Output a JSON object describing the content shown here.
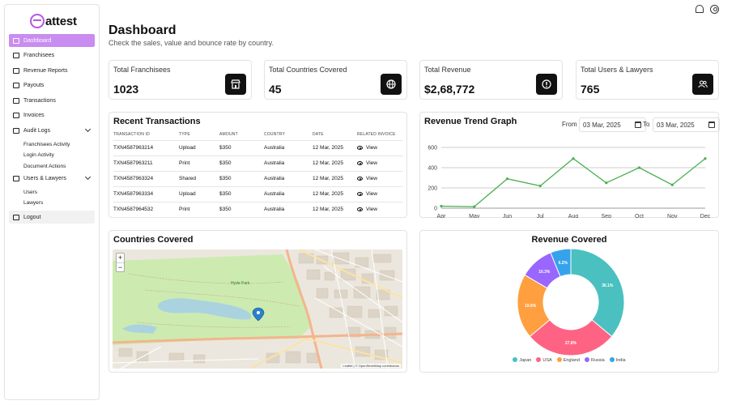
{
  "brand": {
    "name": "attest",
    "accent": "#c98cf0"
  },
  "sidebar": {
    "items": [
      {
        "label": "Dashboard",
        "icon": "dashboard-icon",
        "active": true
      },
      {
        "label": "Franchisees",
        "icon": "store-icon"
      },
      {
        "label": "Revenue Reports",
        "icon": "report-icon"
      },
      {
        "label": "Payouts",
        "icon": "payout-icon"
      },
      {
        "label": "Transactions",
        "icon": "transactions-icon"
      },
      {
        "label": "Invoices",
        "icon": "invoice-icon"
      }
    ],
    "audit_logs": {
      "label": "Audit Logs",
      "children": [
        "Franchisees Activity",
        "Login Activity",
        "Document Actions"
      ]
    },
    "users_lawyers": {
      "label": "Users & Lawyers",
      "children": [
        "Users",
        "Lawyers"
      ]
    },
    "logout": "Logout"
  },
  "header": {
    "title": "Dashboard",
    "subtitle": "Check the sales, value and bounce rate by country.",
    "icons": [
      "bell-icon",
      "user-circle-icon"
    ]
  },
  "stats": [
    {
      "label": "Total Franchisees",
      "value": "1023",
      "icon": "store-icon"
    },
    {
      "label": "Total Countries Covered",
      "value": "45",
      "icon": "globe-icon"
    },
    {
      "label": "Total Revenue",
      "value": "$2,68,772",
      "icon": "info-icon"
    },
    {
      "label": "Total Users & Lawyers",
      "value": "765",
      "icon": "users-icon"
    }
  ],
  "transactions": {
    "title": "Recent Transactions",
    "columns": [
      "TRANSACTION ID",
      "TYPE",
      "AMOUNT",
      "COUNTRY",
      "DATE",
      "RELATED INVOICE"
    ],
    "rows": [
      [
        "TXN4587963214",
        "Upload",
        "$350",
        "Australia",
        "12 Mar, 2025",
        "View"
      ],
      [
        "TXN4587963211",
        "Print",
        "$350",
        "Australia",
        "12 Mar, 2025",
        "View"
      ],
      [
        "TXN4587963324",
        "Shared",
        "$350",
        "Australia",
        "12 Mar, 2025",
        "View"
      ],
      [
        "TXN4587963334",
        "Upload",
        "$350",
        "Australia",
        "12 Mar, 2025",
        "View"
      ],
      [
        "TXN4587964532",
        "Print",
        "$350",
        "Australia",
        "12 Mar, 2025",
        "View"
      ]
    ]
  },
  "revenue_trend": {
    "title": "Revenue Trend Graph",
    "from_label": "From",
    "to_label": "To",
    "from_value": "03 Mar, 2025",
    "to_value": "03 Mar, 2025"
  },
  "countries": {
    "title": "Countries Covered",
    "zoom_in": "+",
    "zoom_out": "−",
    "attribution": "Leaflet | © OpenStreetMap contributors",
    "map_label": "Hyde Park"
  },
  "revenue_covered": {
    "title": "Revenue Covered"
  },
  "chart_data": [
    {
      "type": "line",
      "title": "Revenue Trend Graph",
      "x": [
        "Apr",
        "May",
        "Jun",
        "Jul",
        "Aug",
        "Sep",
        "Oct",
        "Nov",
        "Dec"
      ],
      "series": [
        {
          "values": [
            20,
            15,
            290,
            220,
            490,
            250,
            400,
            230,
            490
          ],
          "color": "#4caf50"
        }
      ],
      "ylim": [
        0,
        600
      ],
      "yticks": [
        0,
        200,
        400,
        600
      ],
      "grid": true
    },
    {
      "type": "pie",
      "title": "Revenue Covered",
      "donut": true,
      "labels": [
        "Japan",
        "USA",
        "England",
        "Russia",
        "India"
      ],
      "values": [
        36.1,
        27.8,
        19.6,
        10.3,
        6.2
      ],
      "value_labels": [
        "36.1%",
        "27.8%",
        "19.6%",
        "10.3%",
        "6.2%"
      ],
      "colors": [
        "#4bc0c0",
        "#ff6384",
        "#ff9f40",
        "#9966ff",
        "#36a2eb"
      ],
      "legend": "bottom"
    }
  ]
}
